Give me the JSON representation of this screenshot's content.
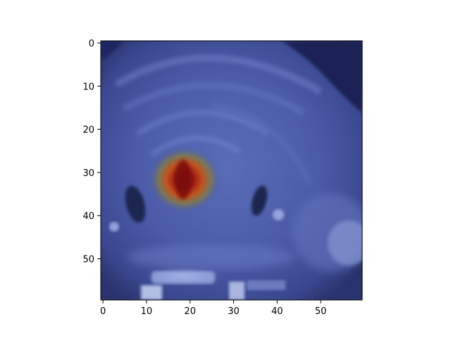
{
  "figure": {
    "type": "image-heatmap-overlay",
    "background": "#ffffff",
    "colormap_base": "grayscale medical slice tinted blue",
    "colormap_overlay": "jet",
    "x_ticks": [
      "0",
      "10",
      "20",
      "30",
      "40",
      "50"
    ],
    "y_ticks": [
      "0",
      "10",
      "20",
      "30",
      "40",
      "50"
    ],
    "x_range": [
      0,
      60
    ],
    "y_range": [
      0,
      60
    ],
    "y_axis_inverted": true,
    "colors": {
      "slice_dark": "#1b2354",
      "slice_mid": "#4a5ba6",
      "slice_light": "#8d9dd6",
      "hotspot_core": "#8b0d0d",
      "hotspot_mid": "#c4541f",
      "hotspot_edge": "#6f7a4a"
    }
  }
}
